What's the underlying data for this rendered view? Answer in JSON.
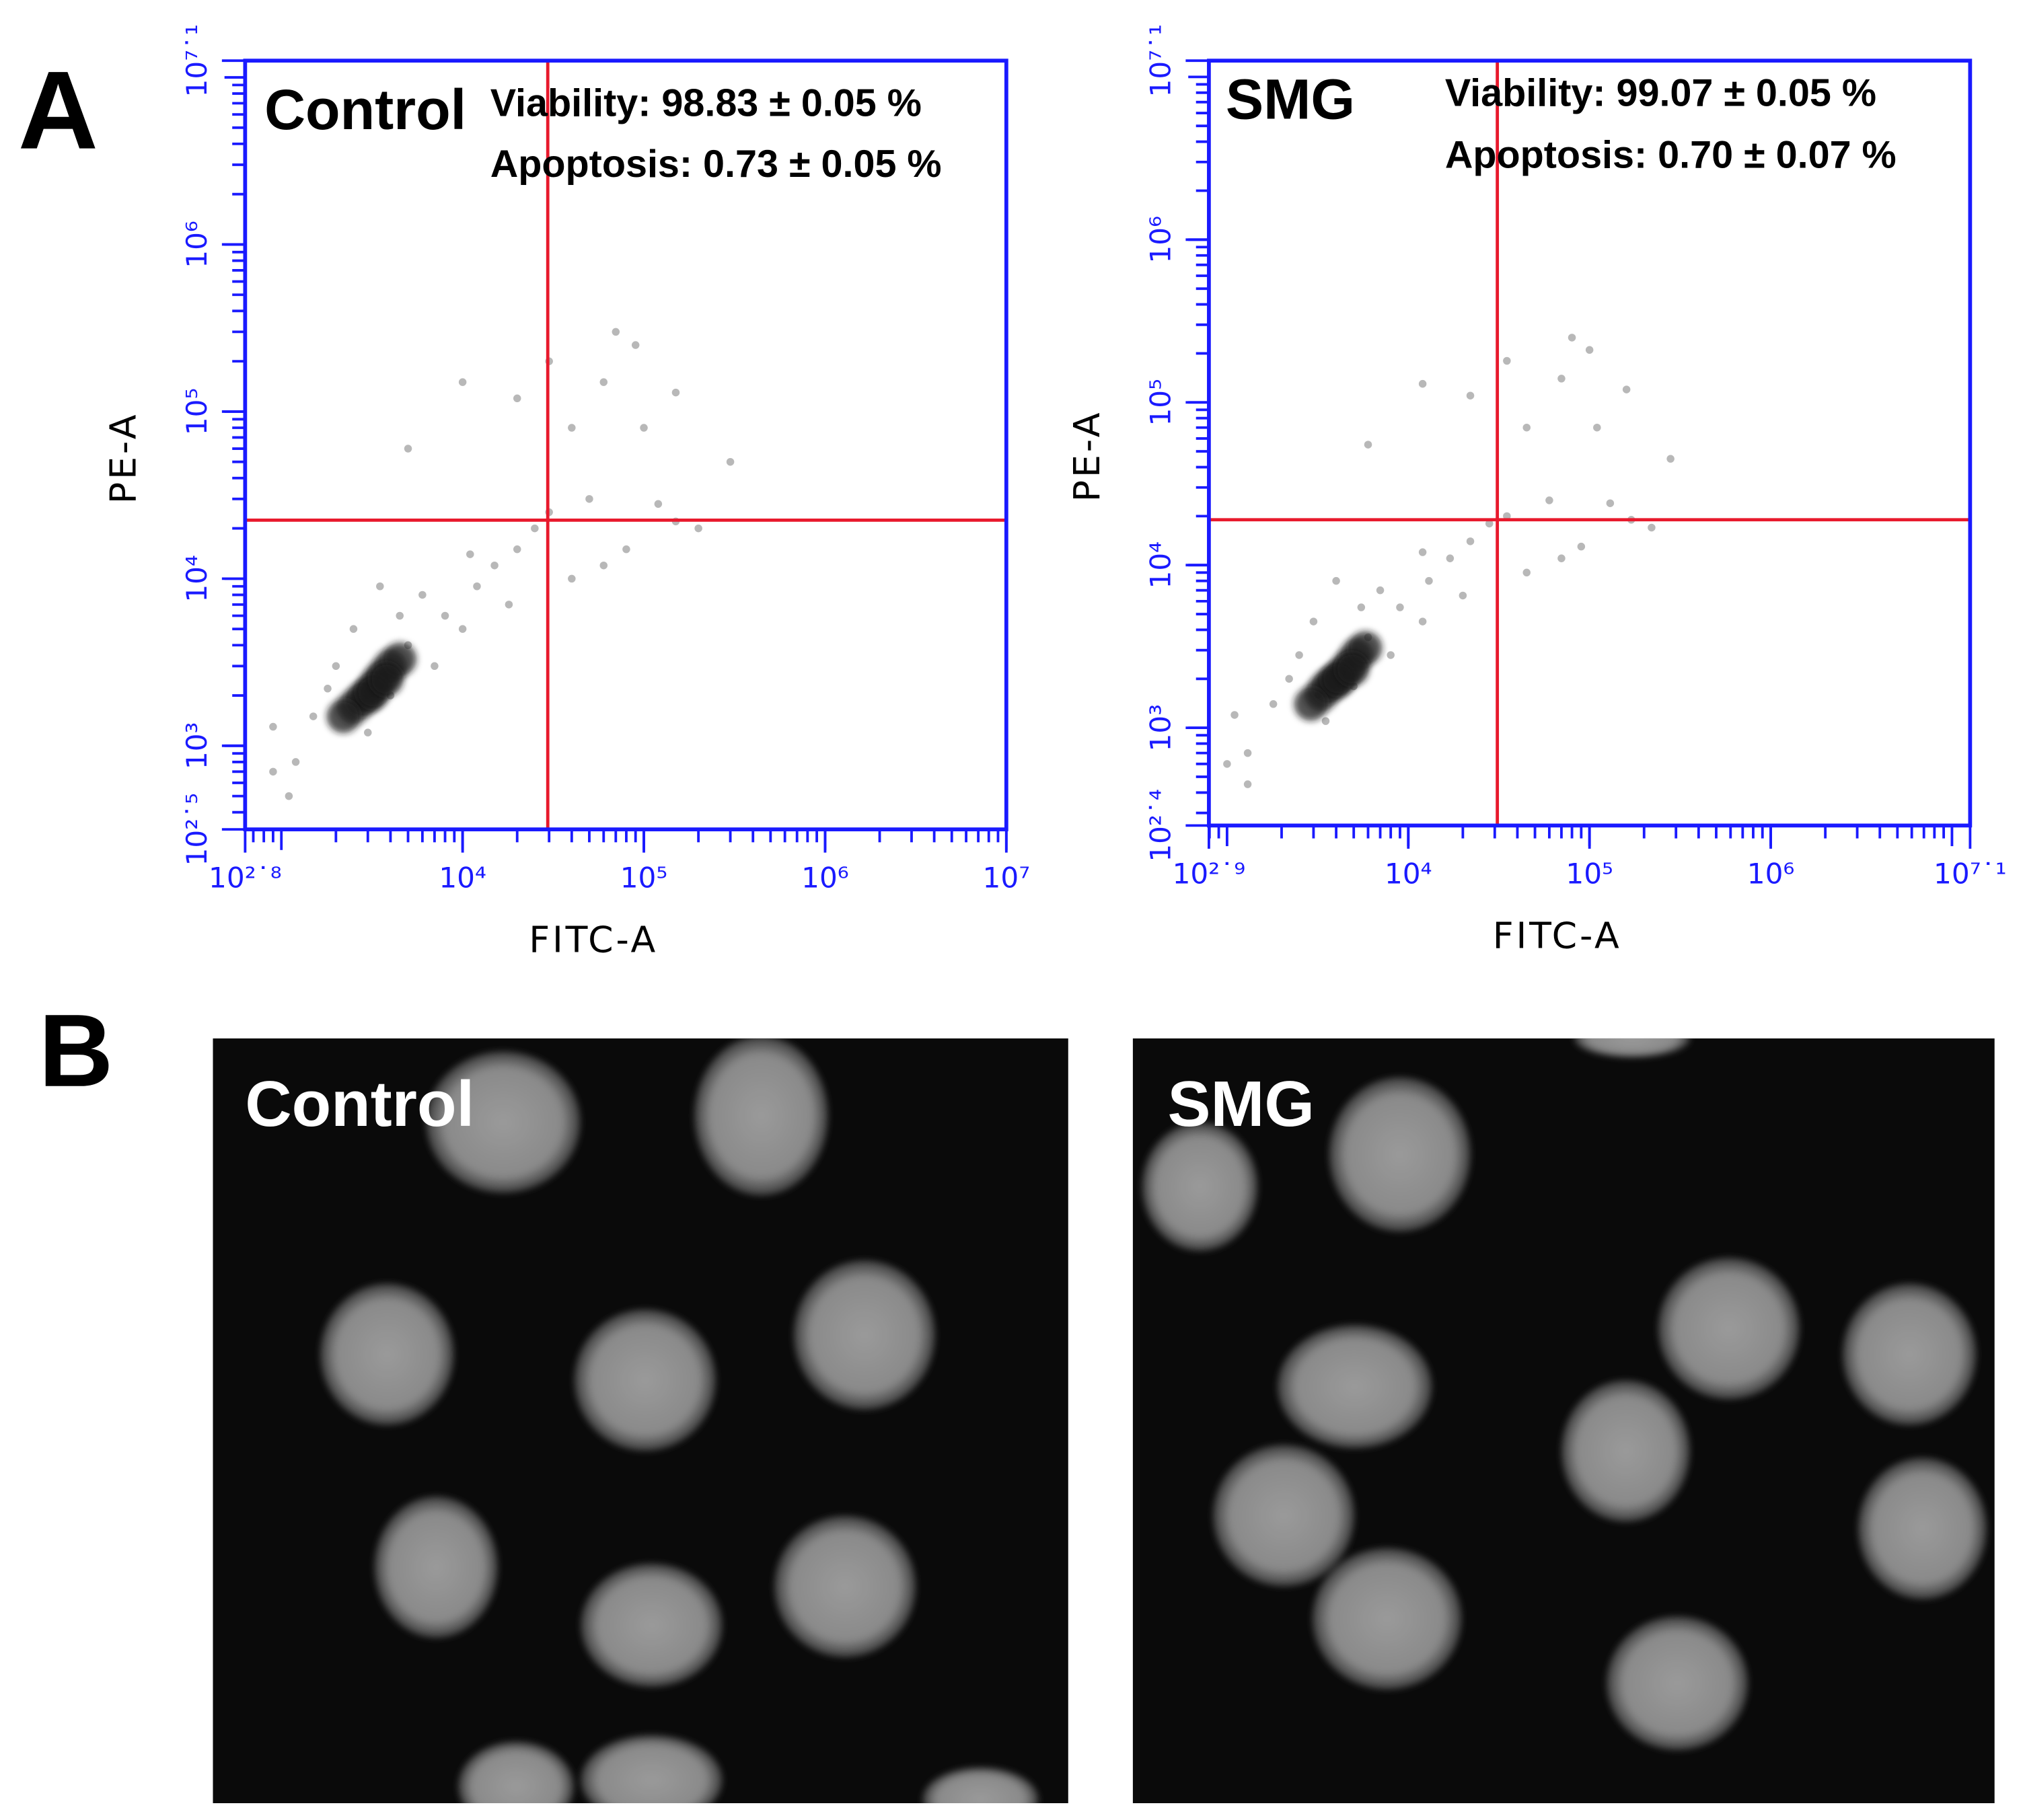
{
  "panel_labels": [
    "A",
    "B"
  ],
  "chart_data": [
    {
      "type": "scatter",
      "title": "Control",
      "annotations": [
        "Viability: 98.83 ± 0.05 %",
        "Apoptosis: 0.73 ± 0.05 %"
      ],
      "xlabel": "FITC-A",
      "ylabel": "PE-A",
      "log_scale": true,
      "xlim": [
        631,
        10000000
      ],
      "ylim": [
        316,
        12589254
      ],
      "xticks": [
        {
          "value": 631,
          "label": "10²˙⁸"
        },
        {
          "value": 10000,
          "label": "10⁴"
        },
        {
          "value": 100000,
          "label": "10⁵"
        },
        {
          "value": 1000000,
          "label": "10⁶"
        },
        {
          "value": 10000000,
          "label": "10⁷"
        }
      ],
      "yticks": [
        {
          "value": 316,
          "label": "10²˙⁵"
        },
        {
          "value": 1000,
          "label": "10³"
        },
        {
          "value": 10000,
          "label": "10⁴"
        },
        {
          "value": 100000,
          "label": "10⁵"
        },
        {
          "value": 1000000,
          "label": "10⁶"
        },
        {
          "value": 12589254,
          "label": "10⁷˙¹"
        }
      ],
      "axis_color": "#1a1aff",
      "gate_color": "#e8192c",
      "gate": {
        "x": 29500,
        "y": 22400
      },
      "series": [
        {
          "color": "#b8b8b8",
          "x": [
            1500,
            2000,
            3000,
            5000,
            8000,
            12000,
            15000,
            20000,
            25000,
            1200,
            900,
            2500,
            4000,
            6000,
            10000,
            18000,
            3500,
            7000,
            1800,
            2800,
            4500,
            11000,
            30000,
            50000,
            120000,
            150000,
            80000,
            60000,
            200000,
            40000,
            60000,
            30000,
            20000,
            10000,
            5000,
            100000,
            150000,
            70000,
            90000,
            300000,
            40000,
            900,
            1100
          ],
          "values": [
            1500,
            3000,
            1200,
            4000,
            6000,
            9000,
            12000,
            15000,
            20000,
            800,
            700,
            5000,
            2000,
            8000,
            5000,
            7000,
            9000,
            3000,
            2200,
            1800,
            6000,
            14000,
            25000,
            30000,
            28000,
            22000,
            15000,
            12000,
            20000,
            80000,
            150000,
            200000,
            120000,
            150000,
            60000,
            80000,
            130000,
            300000,
            250000,
            50000,
            10000,
            1300,
            500
          ]
        },
        {
          "color": "#1e1e1e",
          "x": [
            2500,
            3000,
            3300,
            3600,
            2800,
            4000,
            3200,
            2200,
            4500,
            3800
          ],
          "values": [
            1700,
            2000,
            2300,
            2600,
            1900,
            3000,
            2100,
            1500,
            3300,
            2500
          ]
        }
      ]
    },
    {
      "type": "scatter",
      "title": "SMG",
      "annotations": [
        "Viability: 99.07 ± 0.05 %",
        "Apoptosis: 0.70 ± 0.07 %"
      ],
      "xlabel": "FITC-A",
      "ylabel": "PE-A",
      "log_scale": true,
      "xlim": [
        794,
        12589254
      ],
      "ylim": [
        251,
        12589254
      ],
      "xticks": [
        {
          "value": 794,
          "label": "10²˙⁹"
        },
        {
          "value": 10000,
          "label": "10⁴"
        },
        {
          "value": 100000,
          "label": "10⁵"
        },
        {
          "value": 1000000,
          "label": "10⁶"
        },
        {
          "value": 12589254,
          "label": "10⁷˙¹"
        }
      ],
      "yticks": [
        {
          "value": 251,
          "label": "10²˙⁴"
        },
        {
          "value": 1000,
          "label": "10³"
        },
        {
          "value": 10000,
          "label": "10⁴"
        },
        {
          "value": 100000,
          "label": "10⁵"
        },
        {
          "value": 1000000,
          "label": "10⁶"
        },
        {
          "value": 12589254,
          "label": "10⁷˙¹"
        }
      ],
      "axis_color": "#1a1aff",
      "gate_color": "#e8192c",
      "gate": {
        "x": 31000,
        "y": 19000
      },
      "series": [
        {
          "color": "#b8b8b8",
          "x": [
            1800,
            2500,
            3500,
            6000,
            9000,
            13000,
            17000,
            22000,
            28000,
            1300,
            1000,
            3000,
            5000,
            7000,
            12000,
            20000,
            4000,
            8000,
            2200,
            3200,
            5500,
            12000,
            35000,
            60000,
            130000,
            170000,
            90000,
            70000,
            220000,
            45000,
            70000,
            35000,
            22000,
            12000,
            6000,
            110000,
            160000,
            80000,
            100000,
            280000,
            45000,
            1100,
            1300
          ],
          "values": [
            1400,
            2800,
            1100,
            3600,
            5500,
            8000,
            11000,
            14000,
            18000,
            700,
            600,
            4500,
            1800,
            7000,
            4500,
            6500,
            8000,
            2800,
            2000,
            1600,
            5500,
            12000,
            20000,
            25000,
            24000,
            19000,
            13000,
            11000,
            17000,
            70000,
            140000,
            180000,
            110000,
            130000,
            55000,
            70000,
            120000,
            250000,
            210000,
            45000,
            9000,
            1200,
            450
          ]
        },
        {
          "color": "#1e1e1e",
          "x": [
            3300,
            3900,
            4300,
            4700,
            3600,
            5200,
            4100,
            2900,
            5800,
            4900
          ],
          "values": [
            1600,
            1900,
            2100,
            2400,
            1800,
            2800,
            2000,
            1400,
            3100,
            2300
          ]
        }
      ]
    }
  ],
  "micrographs": [
    {
      "label": "Control"
    },
    {
      "label": "SMG"
    }
  ]
}
